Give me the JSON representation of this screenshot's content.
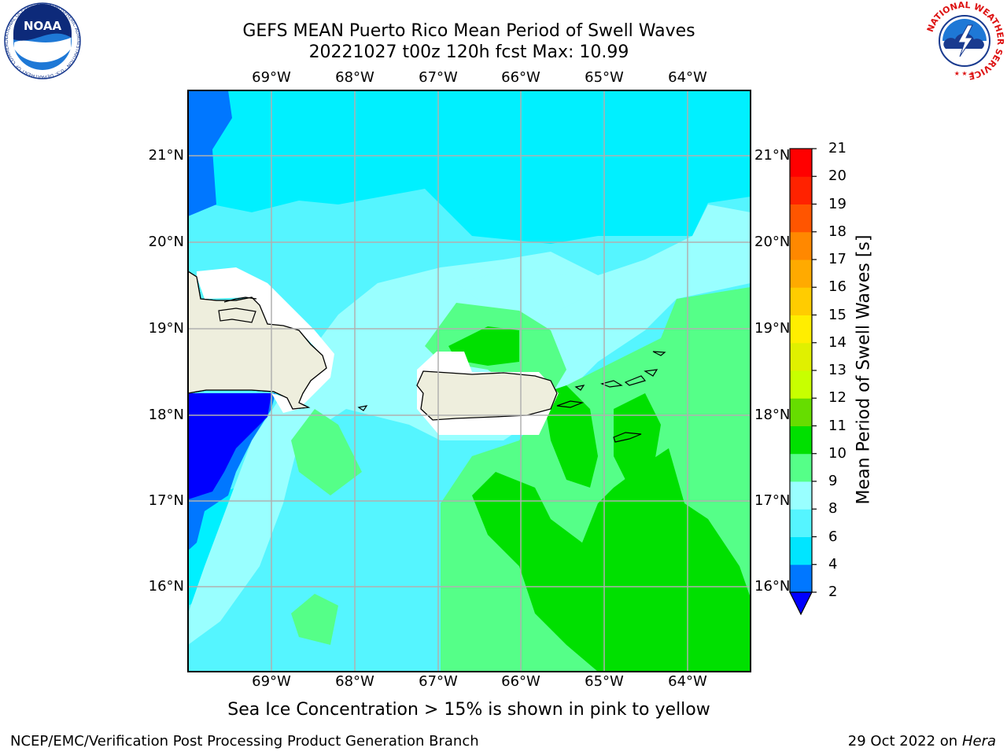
{
  "header": {
    "title_line1": "GEFS MEAN Puerto Rico Mean Period of Swell Waves",
    "title_line2": "20221027 t00z 120h fcst   Max: 10.99"
  },
  "map": {
    "lon_ticks": [
      "69°W",
      "68°W",
      "67°W",
      "66°W",
      "65°W",
      "64°W"
    ],
    "lat_ticks": [
      "21°N",
      "20°N",
      "19°N",
      "18°N",
      "17°N",
      "16°N"
    ],
    "land_color": "#eeeedd",
    "grid_color": "#b0b0b0"
  },
  "colorbar": {
    "title": "Mean Period of Swell Waves [s]",
    "levels": [
      "2",
      "4",
      "6",
      "8",
      "9",
      "10",
      "11",
      "12",
      "13",
      "14",
      "15",
      "16",
      "17",
      "18",
      "19",
      "20",
      "21"
    ],
    "colors": [
      "#0000ff",
      "#0077ff",
      "#00e5ff",
      "#55f5ff",
      "#99ffff",
      "#55ff88",
      "#00e000",
      "#66dd00",
      "#c8ff00",
      "#e0f000",
      "#ffee00",
      "#ffcc00",
      "#ffaa00",
      "#ff8800",
      "#ff5500",
      "#ff2200",
      "#ff0000"
    ],
    "under_color": "#0000ff"
  },
  "footer": {
    "subtitle": "Sea Ice Concentration > 15% is shown in pink to yellow",
    "credit_left": "NCEP/EMC/Verification Post Processing Product Generation Branch",
    "credit_date": "29 Oct 2022 on ",
    "credit_machine": "Hera"
  },
  "logos": {
    "noaa_text": "NOAA",
    "noaa_ring_text": "NATIONAL OCEANIC AND ATMOSPHERIC ADMINISTRATION · U.S. DEPARTMENT OF COMMERCE ·",
    "nws_ring_text": "NATIONAL WEATHER SERVICE"
  }
}
